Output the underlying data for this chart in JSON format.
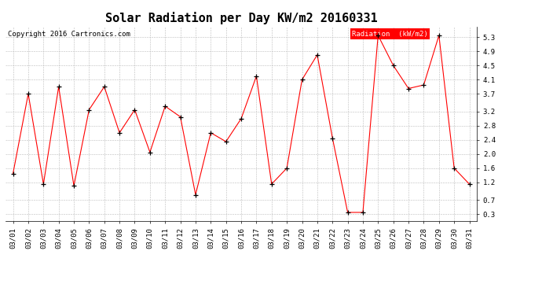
{
  "title": "Solar Radiation per Day KW/m2 20160331",
  "copyright": "Copyright 2016 Cartronics.com",
  "legend_label": "Radiation  (kW/m2)",
  "dates": [
    "03/01",
    "03/02",
    "03/03",
    "03/04",
    "03/05",
    "03/06",
    "03/07",
    "03/08",
    "03/09",
    "03/10",
    "03/11",
    "03/12",
    "03/13",
    "03/14",
    "03/15",
    "03/16",
    "03/17",
    "03/18",
    "03/19",
    "03/20",
    "03/21",
    "03/22",
    "03/23",
    "03/24",
    "03/25",
    "03/26",
    "03/27",
    "03/28",
    "03/29",
    "03/30",
    "03/31"
  ],
  "values": [
    1.45,
    3.7,
    1.15,
    3.9,
    1.1,
    3.25,
    3.9,
    2.6,
    3.25,
    2.05,
    3.35,
    3.05,
    0.85,
    2.6,
    2.35,
    3.0,
    4.2,
    1.15,
    1.6,
    4.1,
    4.8,
    2.45,
    0.35,
    0.35,
    5.35,
    4.5,
    3.85,
    3.95,
    5.35,
    1.6,
    1.15
  ],
  "line_color": "red",
  "marker_color": "black",
  "marker": "+",
  "grid_color": "#bbbbbb",
  "bg_color": "white",
  "plot_bg_color": "white",
  "ylim": [
    0.1,
    5.6
  ],
  "yticks": [
    0.3,
    0.7,
    1.2,
    1.6,
    2.0,
    2.4,
    2.8,
    3.2,
    3.7,
    4.1,
    4.5,
    4.9,
    5.3
  ],
  "legend_bg": "red",
  "legend_text_color": "white",
  "title_fontsize": 11,
  "copyright_fontsize": 6.5,
  "tick_fontsize": 6.5
}
